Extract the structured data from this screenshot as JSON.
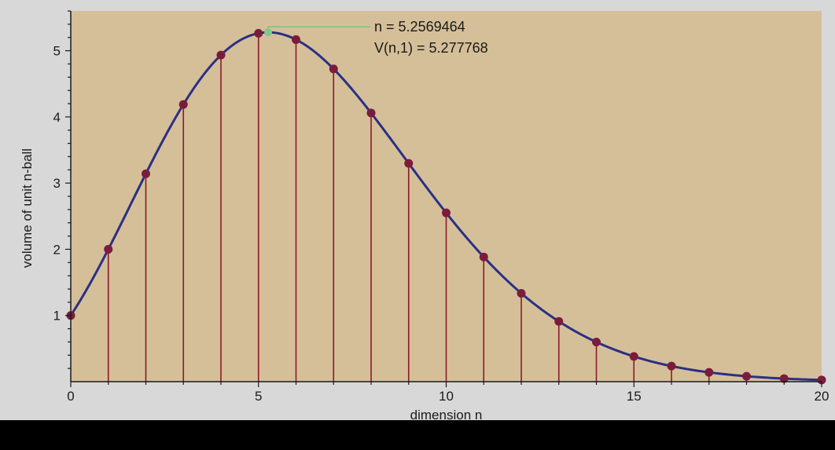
{
  "chart_data": {
    "type": "line",
    "xlabel": "dimension n",
    "ylabel": "volume of unit n-ball",
    "xlim": [
      0,
      20
    ],
    "ylim": [
      0,
      5.6
    ],
    "x_ticks": [
      "0",
      "5",
      "10",
      "15",
      "20"
    ],
    "y_ticks": [
      "1",
      "2",
      "3",
      "4",
      "5"
    ],
    "x": [
      0,
      1,
      2,
      3,
      4,
      5,
      6,
      7,
      8,
      9,
      10,
      11,
      12,
      13,
      14,
      15,
      16,
      17,
      18,
      19,
      20
    ],
    "values": [
      1,
      2,
      3.1416,
      4.1888,
      4.9348,
      5.2638,
      5.1677,
      4.7248,
      4.0587,
      3.2985,
      2.5502,
      1.8841,
      1.3353,
      0.9106,
      0.5993,
      0.3814,
      0.2353,
      0.141,
      0.0821,
      0.0466,
      0.0258
    ],
    "max_point": {
      "x": 5.2569464,
      "y": 5.277768
    },
    "annotation_n": "n = 5.2569464",
    "annotation_v": "V(n,1) = 5.277768",
    "colors": {
      "plot_background": "#d5bf98",
      "frame_background": "#d8d8d8",
      "curve": "#2b2f85",
      "stems": "#8b1a2e",
      "points": "#7a1c3b",
      "max_marker": "#7fc88a",
      "axis": "#1a1a1a"
    },
    "grid": false
  }
}
